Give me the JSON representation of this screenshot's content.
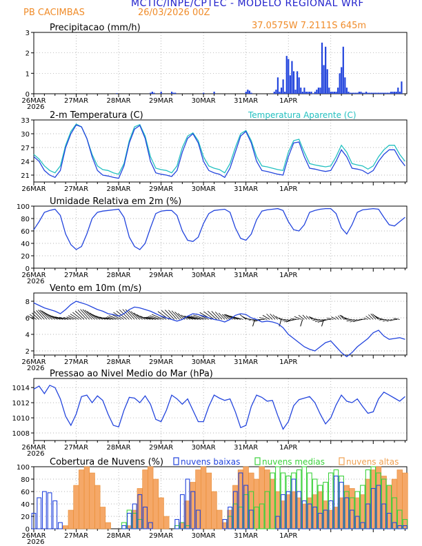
{
  "header": {
    "title": "MCTIC/INPE/CPTEC - MODELO REGIONAL WRF",
    "station": "PB CACIMBAS",
    "run": "26/03/2026 00Z",
    "coords": "37.0575W 7.2111S 645m"
  },
  "colors": {
    "blue": "#2244dd",
    "cyan": "#22c0c0",
    "orange": "#f0a050",
    "green": "#3cd23c",
    "title_blue": "#2222cc",
    "title_orange": "#f08c2a",
    "grid": "#999999"
  },
  "chart_data": [
    {
      "type": "bar",
      "title": "Precipitacao (mm/h)",
      "ylim": [
        0,
        3
      ],
      "yticks": [
        0,
        1,
        2,
        3
      ],
      "xtick_labels": [
        "26MAR",
        "27MAR",
        "28MAR",
        "29MAR",
        "30MAR",
        "31MAR",
        "1APR"
      ],
      "first_label_year": "2026",
      "x_hours": [
        47,
        66,
        67,
        68,
        72,
        78,
        79,
        80,
        96,
        102,
        120,
        121,
        122,
        123,
        136,
        137,
        138,
        139,
        140,
        141,
        142,
        143,
        144,
        145,
        146,
        147,
        148,
        149,
        150,
        151,
        152,
        153,
        154,
        155,
        156,
        157,
        158,
        159,
        160,
        161,
        162,
        163,
        164,
        165,
        166,
        167,
        168,
        169,
        170,
        171,
        172,
        173,
        174,
        175,
        176,
        177,
        178,
        179,
        180,
        181,
        182,
        183,
        184,
        185,
        186,
        187,
        188,
        189,
        190,
        191,
        192,
        193,
        194,
        195,
        196,
        197,
        198,
        199,
        200,
        201,
        202,
        203,
        204,
        205,
        206,
        207,
        208
      ],
      "values": [
        0.03,
        0.05,
        0.1,
        0.05,
        0.1,
        0.1,
        0.05,
        0.05,
        0.05,
        0.1,
        0.1,
        0.2,
        0.15,
        0.05,
        0.1,
        0.2,
        0.8,
        0.1,
        0.3,
        0.7,
        0.1,
        1.85,
        1.7,
        0.9,
        1.6,
        1.1,
        0.2,
        1.1,
        0.8,
        0.3,
        0.1,
        0.3,
        0.1,
        0.1,
        0.1,
        0.1,
        0.0,
        0.1,
        0.2,
        0.3,
        0.3,
        2.5,
        1.4,
        2.3,
        1.2,
        0.3,
        0.1,
        0.1,
        0.1,
        0.1,
        0.3,
        1.0,
        1.3,
        2.3,
        0.8,
        0.3,
        0.1,
        0.05,
        0.05,
        0.05,
        0.05,
        0.05,
        0.1,
        0.1,
        0.05,
        0.05,
        0.1,
        0.05,
        0.05,
        0.05,
        0.05,
        0.05,
        0.05,
        0.05,
        0.05,
        0.05,
        0.05,
        0.05,
        0.05,
        0.05,
        0.1,
        0.1,
        0.1,
        0.1,
        0.3,
        0.1,
        0.6
      ]
    },
    {
      "type": "line",
      "title": "2-m Temperatura (C)",
      "ylim": [
        19.5,
        33
      ],
      "yticks": [
        21,
        24,
        27,
        30,
        33
      ],
      "xtick_labels": [
        "26MAR",
        "27MAR",
        "28MAR",
        "29MAR",
        "30MAR",
        "31MAR",
        "1APR"
      ],
      "first_label_year": "2026",
      "x": [
        0,
        3,
        6,
        9,
        12,
        15,
        18,
        21,
        24,
        27,
        30,
        33,
        36,
        39,
        42,
        45,
        48,
        51,
        54,
        57,
        60,
        63,
        66,
        69,
        72,
        75,
        78,
        81,
        84,
        87,
        90,
        93,
        96,
        99,
        102,
        105,
        108,
        111,
        114,
        117,
        120,
        123,
        126,
        129,
        132,
        135,
        138,
        141,
        144,
        147,
        150,
        153,
        156,
        159,
        162,
        165,
        168,
        171,
        174,
        177,
        180,
        183,
        186,
        189,
        192,
        195,
        198,
        201,
        204,
        207,
        210
      ],
      "series": [
        {
          "name": "Temperatura",
          "values": [
            25,
            24,
            22,
            21,
            20.5,
            22,
            27,
            30,
            31.9,
            31.5,
            29,
            25,
            22,
            21,
            20.8,
            20.5,
            20.3,
            23,
            28,
            31,
            31.8,
            29,
            24,
            21.5,
            21.2,
            21,
            20.7,
            22,
            26,
            29,
            30,
            28,
            24,
            22,
            21.5,
            21.2,
            20.5,
            22.5,
            26,
            29.5,
            30.5,
            28,
            24,
            22,
            21.8,
            21.5,
            21.2,
            21,
            25,
            28,
            28.2,
            25,
            22.5,
            22.3,
            22,
            21.8,
            22,
            24,
            26.5,
            25,
            22.5,
            22.3,
            22,
            21.3,
            22,
            24,
            25.5,
            26.5,
            26.5,
            24.5,
            23
          ]
        },
        {
          "name": "Temperatura Aparente",
          "values": [
            25.5,
            24.5,
            23,
            22,
            21.5,
            23,
            27.5,
            30.5,
            32.1,
            31.5,
            29,
            25.5,
            23,
            22.2,
            22,
            21.5,
            21.2,
            23.5,
            28.5,
            31.5,
            32,
            29.5,
            25,
            22.5,
            22.2,
            22,
            21.5,
            23,
            27,
            29.5,
            30.2,
            28.5,
            25,
            23,
            22.5,
            22.2,
            21.5,
            23.5,
            27,
            30,
            30.7,
            28.5,
            25,
            23,
            22.8,
            22.5,
            22.2,
            22,
            26,
            28.5,
            28.8,
            26,
            23.5,
            23.2,
            23,
            22.8,
            23,
            25,
            27.5,
            26,
            23.5,
            23.2,
            23,
            22.3,
            23,
            25,
            26.5,
            27.5,
            27.5,
            25.5,
            24
          ]
        }
      ]
    },
    {
      "type": "line",
      "title": "Umidade Relativa em 2m (%)",
      "ylim": [
        0,
        100
      ],
      "yticks": [
        0,
        20,
        40,
        60,
        80,
        100
      ],
      "xtick_labels": [
        "26MAR",
        "27MAR",
        "28MAR",
        "29MAR",
        "30MAR",
        "31MAR",
        "1APR"
      ],
      "first_label_year": "2026",
      "x": [
        0,
        3,
        6,
        9,
        12,
        15,
        18,
        21,
        24,
        27,
        30,
        33,
        36,
        39,
        42,
        45,
        48,
        51,
        54,
        57,
        60,
        63,
        66,
        69,
        72,
        75,
        78,
        81,
        84,
        87,
        90,
        93,
        96,
        99,
        102,
        105,
        108,
        111,
        114,
        117,
        120,
        123,
        126,
        129,
        132,
        135,
        138,
        141,
        144,
        147,
        150,
        153,
        156,
        159,
        162,
        165,
        168,
        171,
        174,
        177,
        180,
        183,
        186,
        189,
        192,
        195,
        198,
        201,
        204,
        207,
        210
      ],
      "values": [
        62,
        75,
        90,
        93,
        95,
        85,
        55,
        38,
        30,
        35,
        55,
        80,
        90,
        92,
        93,
        94,
        95,
        82,
        50,
        35,
        30,
        40,
        65,
        88,
        92,
        93,
        93,
        85,
        60,
        45,
        43,
        50,
        72,
        88,
        93,
        94,
        95,
        90,
        65,
        48,
        45,
        55,
        78,
        92,
        94,
        95,
        96,
        93,
        75,
        62,
        60,
        70,
        90,
        93,
        95,
        96,
        96,
        88,
        65,
        55,
        70,
        90,
        94,
        95,
        96,
        95,
        82,
        70,
        68,
        75,
        82
      ]
    },
    {
      "type": "line",
      "title": "Vento em 10m (m/s)",
      "ylim": [
        1.5,
        9
      ],
      "yticks": [
        2,
        4,
        6,
        8
      ],
      "xtick_labels": [
        "26MAR",
        "27MAR",
        "28MAR",
        "29MAR",
        "30MAR",
        "31MAR",
        "1APR"
      ],
      "first_label_year": "2026",
      "x": [
        0,
        3,
        6,
        9,
        12,
        15,
        18,
        21,
        24,
        27,
        30,
        33,
        36,
        39,
        42,
        45,
        48,
        51,
        54,
        57,
        60,
        63,
        66,
        69,
        72,
        75,
        78,
        81,
        84,
        87,
        90,
        93,
        96,
        99,
        102,
        105,
        108,
        111,
        114,
        117,
        120,
        123,
        126,
        129,
        132,
        135,
        138,
        141,
        144,
        147,
        150,
        153,
        156,
        159,
        162,
        165,
        168,
        171,
        174,
        177,
        180,
        183,
        186,
        189,
        192,
        195,
        198,
        201,
        204,
        207,
        210
      ],
      "values": [
        7.8,
        7.5,
        7.2,
        7,
        6.8,
        6.5,
        7,
        7.6,
        8,
        7.8,
        7.6,
        7.3,
        7,
        6.8,
        6.5,
        6.4,
        6.2,
        6.5,
        7,
        7.3,
        7.2,
        7,
        6.8,
        6.5,
        6.2,
        6,
        5.8,
        5.6,
        5.8,
        6.2,
        6.5,
        6.4,
        6.2,
        6,
        5.8,
        5.7,
        5.5,
        5.8,
        6.3,
        6.5,
        6.4,
        6,
        5.8,
        5.5,
        5.6,
        5.5,
        5.3,
        4.8,
        4,
        3.5,
        3,
        2.5,
        2.2,
        2,
        2.5,
        3,
        3.2,
        2.5,
        1.8,
        1.3,
        1.8,
        2.5,
        3,
        3.5,
        4.2,
        4.5,
        3.8,
        3.4,
        3.5,
        3.6,
        3.4
      ],
      "barbs_note": "wind direction arrows along ~6 m/s baseline"
    },
    {
      "type": "line",
      "title": "Pressao ao Nivel Medio do Mar (hPa)",
      "ylim": [
        1007,
        1015.2
      ],
      "yticks": [
        1008,
        1010,
        1012,
        1014
      ],
      "xtick_labels": [
        "26MAR",
        "27MAR",
        "28MAR",
        "29MAR",
        "30MAR",
        "31MAR",
        "1APR"
      ],
      "first_label_year": "2026",
      "x": [
        0,
        3,
        6,
        9,
        12,
        15,
        18,
        21,
        24,
        27,
        30,
        33,
        36,
        39,
        42,
        45,
        48,
        51,
        54,
        57,
        60,
        63,
        66,
        69,
        72,
        75,
        78,
        81,
        84,
        87,
        90,
        93,
        96,
        99,
        102,
        105,
        108,
        111,
        114,
        117,
        120,
        123,
        126,
        129,
        132,
        135,
        138,
        141,
        144,
        147,
        150,
        153,
        156,
        159,
        162,
        165,
        168,
        171,
        174,
        177,
        180,
        183,
        186,
        189,
        192,
        195,
        198,
        201,
        204,
        207,
        210
      ],
      "values": [
        1013.8,
        1014.2,
        1013.2,
        1014.3,
        1014,
        1012.5,
        1010.2,
        1009,
        1010.5,
        1012.8,
        1013,
        1012,
        1012.9,
        1012.3,
        1010.5,
        1009,
        1008.8,
        1011,
        1012.7,
        1012.6,
        1012,
        1012.9,
        1011.8,
        1009.8,
        1009.5,
        1011,
        1013,
        1012.5,
        1011.8,
        1012.5,
        1011,
        1009.5,
        1009.5,
        1011.5,
        1013,
        1012.6,
        1012.3,
        1012.5,
        1010.8,
        1008.7,
        1009,
        1011.5,
        1013,
        1012.7,
        1012.2,
        1012.3,
        1010.3,
        1008.5,
        1009.5,
        1011.6,
        1012.4,
        1012.6,
        1012.8,
        1012,
        1010.5,
        1009.2,
        1010,
        1011.7,
        1013,
        1012.2,
        1012,
        1012.5,
        1011.5,
        1010.6,
        1010.8,
        1012.5,
        1013.4,
        1013,
        1012.6,
        1012.2,
        1012.8
      ]
    },
    {
      "type": "bar",
      "title": "Cobertura de Nuvens (%)",
      "ylim": [
        0,
        100
      ],
      "yticks": [
        0,
        20,
        40,
        60,
        80,
        100
      ],
      "xtick_labels": [
        "26MAR",
        "27MAR",
        "28MAR",
        "29MAR",
        "30MAR",
        "31MAR",
        "1APR"
      ],
      "first_label_year": "2026",
      "x": [
        0,
        3,
        6,
        9,
        12,
        15,
        18,
        21,
        24,
        27,
        30,
        33,
        36,
        39,
        42,
        45,
        48,
        51,
        54,
        57,
        60,
        63,
        66,
        69,
        72,
        75,
        78,
        81,
        84,
        87,
        90,
        93,
        96,
        99,
        102,
        105,
        108,
        111,
        114,
        117,
        120,
        123,
        126,
        129,
        132,
        135,
        138,
        141,
        144,
        147,
        150,
        153,
        156,
        159,
        162,
        165,
        168,
        171,
        174,
        177,
        180,
        183,
        186,
        189,
        192,
        195,
        198,
        201,
        204,
        207,
        210
      ],
      "series": [
        {
          "name": "nuvens baixas",
          "values": [
            25,
            50,
            60,
            58,
            45,
            10,
            0,
            0,
            0,
            0,
            0,
            0,
            0,
            0,
            0,
            0,
            0,
            5,
            25,
            40,
            55,
            35,
            10,
            0,
            0,
            0,
            0,
            15,
            55,
            80,
            60,
            30,
            0,
            0,
            0,
            0,
            15,
            35,
            60,
            90,
            70,
            30,
            0,
            0,
            0,
            0,
            20,
            55,
            60,
            80,
            60,
            45,
            40,
            35,
            25,
            30,
            45,
            85,
            75,
            50,
            30,
            20,
            10,
            40,
            65,
            70,
            40,
            25,
            10,
            5,
            5
          ]
        },
        {
          "name": "nuvens medias",
          "values": [
            0,
            0,
            0,
            0,
            0,
            0,
            0,
            0,
            0,
            0,
            0,
            0,
            0,
            0,
            0,
            0,
            0,
            10,
            30,
            25,
            15,
            0,
            0,
            0,
            0,
            0,
            0,
            5,
            10,
            5,
            0,
            0,
            0,
            0,
            0,
            0,
            0,
            20,
            40,
            35,
            55,
            60,
            35,
            40,
            60,
            90,
            100,
            90,
            85,
            90,
            95,
            100,
            90,
            80,
            70,
            75,
            90,
            95,
            85,
            60,
            50,
            60,
            70,
            95,
            100,
            90,
            80,
            70,
            50,
            30,
            15
          ]
        },
        {
          "name": "nuvens altas",
          "values": [
            0,
            0,
            0,
            0,
            0,
            0,
            5,
            30,
            70,
            95,
            100,
            90,
            70,
            35,
            10,
            0,
            0,
            0,
            5,
            30,
            65,
            95,
            100,
            80,
            50,
            20,
            0,
            0,
            10,
            45,
            75,
            95,
            100,
            90,
            60,
            30,
            10,
            30,
            70,
            95,
            100,
            90,
            80,
            100,
            95,
            80,
            60,
            45,
            55,
            60,
            50,
            40,
            50,
            55,
            60,
            45,
            30,
            35,
            50,
            70,
            65,
            50,
            55,
            80,
            95,
            100,
            85,
            70,
            80,
            95,
            90
          ]
        }
      ]
    }
  ]
}
